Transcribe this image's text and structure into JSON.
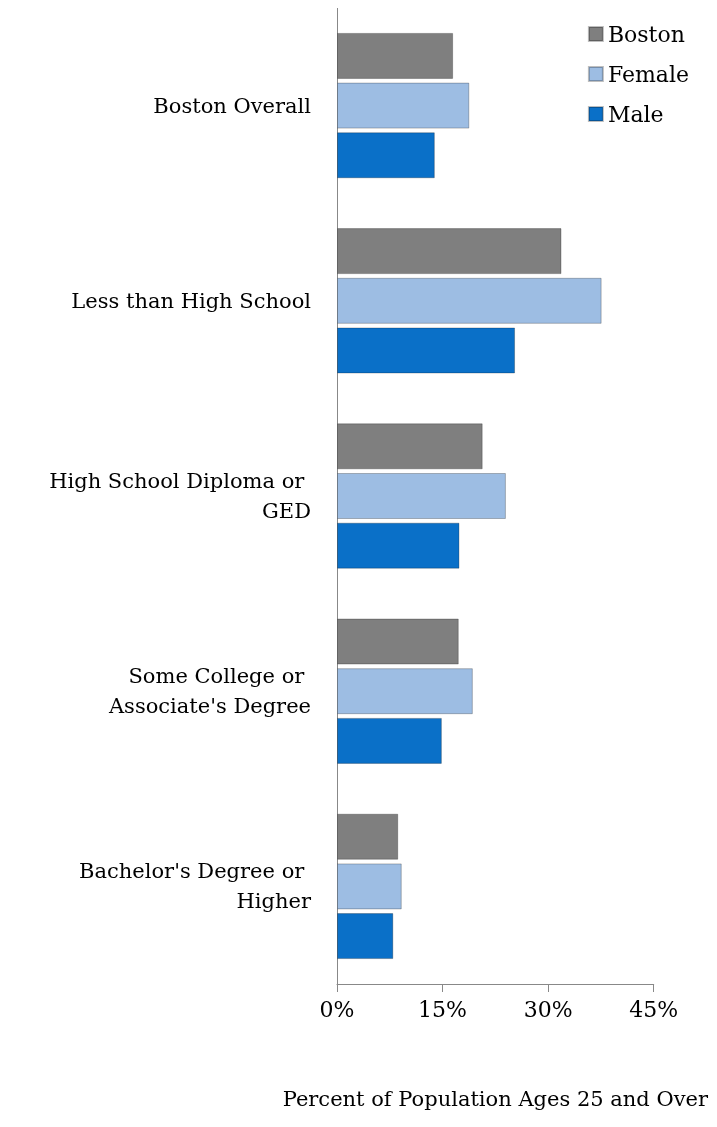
{
  "chart_data": {
    "type": "bar",
    "orientation": "horizontal",
    "xlabel": "Percent of Population Ages 25 and Over",
    "categories": [
      "Boston Overall",
      "Less than High School",
      "High School Diploma or GED",
      "Some College or Associate's Degree",
      "Bachelor's Degree or Higher"
    ],
    "series": [
      {
        "name": "Boston",
        "color": "#7f7f7f",
        "values": [
          16.5,
          31.9,
          20.7,
          17.3,
          8.7
        ]
      },
      {
        "name": "Female",
        "color": "#9dbde3",
        "values": [
          18.8,
          37.6,
          24.0,
          19.3,
          9.2
        ]
      },
      {
        "name": "Male",
        "color": "#0a70c8",
        "values": [
          13.9,
          25.3,
          17.4,
          14.9,
          8.0
        ]
      }
    ],
    "xlim": [
      0,
      45
    ],
    "xticks": [
      {
        "value": 0,
        "label": "0%"
      },
      {
        "value": 15,
        "label": "15%"
      },
      {
        "value": 30,
        "label": "30%"
      },
      {
        "value": 45,
        "label": "45%"
      }
    ],
    "grid": false,
    "legend": "top right"
  }
}
